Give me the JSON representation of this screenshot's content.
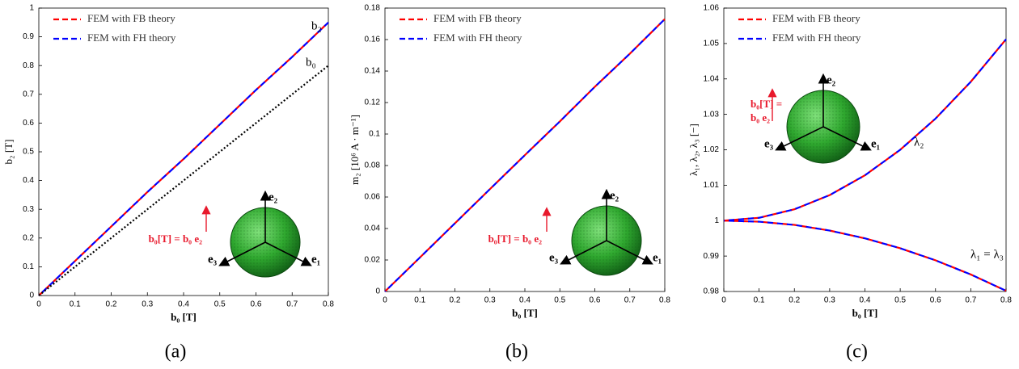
{
  "chart_data": [
    {
      "type": "line",
      "panel_label": "(a)",
      "x_label": "b₀ [T]",
      "y_label": "b₂ [T]",
      "xlim": [
        0,
        0.8
      ],
      "xticks": [
        0,
        0.1,
        0.2,
        0.3,
        0.4,
        0.5,
        0.6,
        0.7,
        0.8
      ],
      "ylim": [
        0,
        1
      ],
      "yticks": [
        0,
        0.1,
        0.2,
        0.3,
        0.4,
        0.5,
        0.6,
        0.7,
        0.8,
        0.9,
        1
      ],
      "x": [
        0,
        0.1,
        0.2,
        0.3,
        0.4,
        0.5,
        0.6,
        0.7,
        0.8
      ],
      "series": [
        {
          "name": "FEM with FB theory",
          "color": "#ff0000",
          "dash": "dashed",
          "values": [
            0,
            0.12,
            0.24,
            0.36,
            0.475,
            0.595,
            0.715,
            0.83,
            0.95
          ]
        },
        {
          "name": "FEM with FH theory",
          "color": "#0000ff",
          "dash": "dashed",
          "values": [
            0,
            0.12,
            0.24,
            0.36,
            0.475,
            0.595,
            0.715,
            0.83,
            0.95
          ]
        },
        {
          "name": "b₀",
          "color": "#000000",
          "dash": "dotted",
          "in_legend": false,
          "values": [
            0,
            0.1,
            0.2,
            0.3,
            0.4,
            0.5,
            0.6,
            0.7,
            0.8
          ]
        }
      ],
      "annotations": [
        "b₂",
        "b₀"
      ],
      "inset": {
        "field_label": [
          "b₀[T] = b₀ e₂"
        ],
        "axes": [
          "e₁",
          "e₂",
          "e₃"
        ]
      }
    },
    {
      "type": "line",
      "panel_label": "(b)",
      "x_label": "b₀ [T]",
      "y_label": "m₂ [10⁶ A · m⁻¹]",
      "xlim": [
        0,
        0.8
      ],
      "xticks": [
        0,
        0.1,
        0.2,
        0.3,
        0.4,
        0.5,
        0.6,
        0.7,
        0.8
      ],
      "ylim": [
        0,
        0.18
      ],
      "yticks": [
        0,
        0.02,
        0.04,
        0.06,
        0.08,
        0.1,
        0.12,
        0.14,
        0.16,
        0.18
      ],
      "x": [
        0,
        0.1,
        0.2,
        0.3,
        0.4,
        0.5,
        0.6,
        0.7,
        0.8
      ],
      "series": [
        {
          "name": "FEM with FB theory",
          "color": "#ff0000",
          "dash": "dashed",
          "values": [
            0,
            0.0216,
            0.0433,
            0.065,
            0.0866,
            0.108,
            0.13,
            0.151,
            0.173
          ]
        },
        {
          "name": "FEM with FH theory",
          "color": "#0000ff",
          "dash": "dashed",
          "values": [
            0,
            0.0216,
            0.0433,
            0.065,
            0.0866,
            0.108,
            0.13,
            0.151,
            0.173
          ]
        }
      ],
      "annotations": [],
      "inset": {
        "field_label": [
          "b₀[T] = b₀ e₂"
        ],
        "axes": [
          "e₁",
          "e₂",
          "e₃"
        ]
      }
    },
    {
      "type": "line",
      "panel_label": "(c)",
      "x_label": "b₀ [T]",
      "y_label": "λ₁, λ₂, λ₃ [−]",
      "xlim": [
        0,
        0.8
      ],
      "xticks": [
        0,
        0.1,
        0.2,
        0.3,
        0.4,
        0.5,
        0.6,
        0.7,
        0.8
      ],
      "ylim": [
        0.98,
        1.06
      ],
      "yticks": [
        0.98,
        0.99,
        1,
        1.01,
        1.02,
        1.03,
        1.04,
        1.05,
        1.06
      ],
      "x": [
        0,
        0.1,
        0.2,
        0.3,
        0.4,
        0.5,
        0.6,
        0.7,
        0.8
      ],
      "series": [
        {
          "name": "FEM with FB theory",
          "color": "#ff0000",
          "dash": "dashed",
          "values": [
            1,
            1.0008,
            1.0032,
            1.0072,
            1.0128,
            1.02,
            1.0288,
            1.0392,
            1.0512
          ]
        },
        {
          "name": "FEM with FH theory",
          "color": "#0000ff",
          "dash": "dashed",
          "values": [
            1,
            1.0008,
            1.0032,
            1.0072,
            1.0128,
            1.02,
            1.0288,
            1.0392,
            1.0512
          ]
        },
        {
          "name": "FEM with FB theory",
          "color": "#ff0000",
          "dash": "dashed",
          "in_legend": false,
          "values": [
            1,
            0.9997,
            0.9988,
            0.9972,
            0.995,
            0.9922,
            0.9888,
            0.9848,
            0.9802
          ]
        },
        {
          "name": "FEM with FH theory",
          "color": "#0000ff",
          "dash": "dashed",
          "in_legend": false,
          "values": [
            1,
            0.9997,
            0.9988,
            0.9972,
            0.995,
            0.9922,
            0.9888,
            0.9848,
            0.9802
          ]
        }
      ],
      "annotations": [
        "λ₂",
        "λ₁ = λ₃"
      ],
      "inset": {
        "field_label": [
          "b₀[T] =",
          "b₀ e₂"
        ],
        "axes": [
          "e₁",
          "e₂",
          "e₃"
        ]
      }
    }
  ]
}
